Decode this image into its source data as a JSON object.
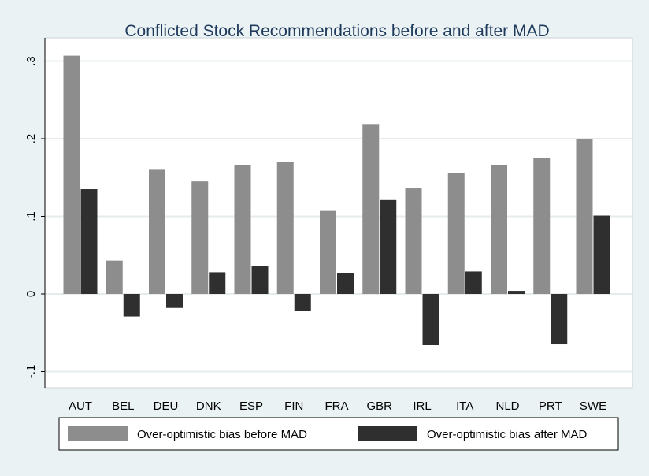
{
  "chart_data": {
    "type": "bar",
    "title": "Conflicted Stock Recommendations before and after MAD",
    "xlabel": "",
    "ylabel": "",
    "categories": [
      "AUT",
      "BEL",
      "DEU",
      "DNK",
      "ESP",
      "FIN",
      "FRA",
      "GBR",
      "IRL",
      "ITA",
      "NLD",
      "PRT",
      "SWE"
    ],
    "series": [
      {
        "name": "Over-optimistic bias before MAD",
        "color": "#8d8d8d",
        "values": [
          0.307,
          0.043,
          0.16,
          0.145,
          0.166,
          0.17,
          0.107,
          0.219,
          0.136,
          0.156,
          0.166,
          0.175,
          0.199
        ]
      },
      {
        "name": "Over-optimistic bias after MAD",
        "color": "#2f2f2f",
        "values": [
          0.135,
          -0.029,
          -0.018,
          0.028,
          0.036,
          -0.022,
          0.027,
          0.121,
          -0.066,
          0.029,
          0.004,
          -0.065,
          0.101
        ]
      }
    ],
    "ylim": [
      -0.12,
      0.33
    ],
    "yticks": [
      -0.1,
      0,
      0.1,
      0.2,
      0.3
    ],
    "ytick_labels": [
      "-.1",
      "0",
      ".1",
      ".2",
      ".3"
    ],
    "grid": true,
    "legend": "bottom"
  }
}
